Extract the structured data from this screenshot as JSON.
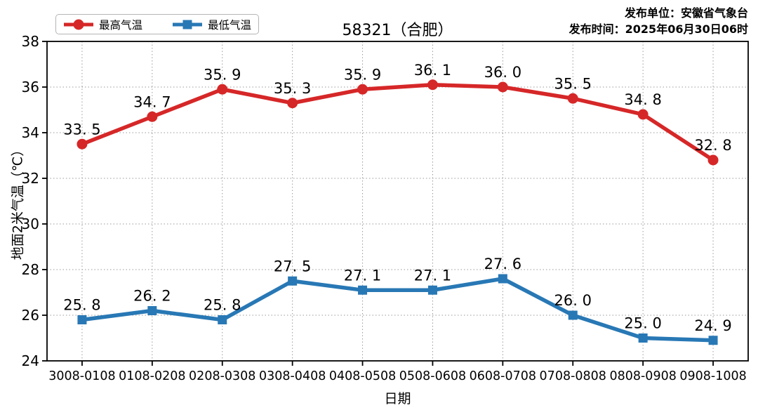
{
  "header": {
    "publisher_unit": "发布单位：安徽省气象台",
    "publish_time": "发布时间：2025年06月30日06时"
  },
  "chart_data": {
    "type": "line",
    "title": "58321（合肥）",
    "xlabel": "日期",
    "ylabel": "地面2米气温（℃）",
    "categories": [
      "3008-0108",
      "0108-0208",
      "0208-0308",
      "0308-0408",
      "0408-0508",
      "0508-0608",
      "0608-0708",
      "0708-0808",
      "0808-0908",
      "0908-1008"
    ],
    "series": [
      {
        "name": "最高气温",
        "color": "#d62728",
        "marker": "circle",
        "values": [
          33.5,
          34.7,
          35.9,
          35.3,
          35.9,
          36.1,
          36.0,
          35.5,
          34.8,
          32.8
        ]
      },
      {
        "name": "最低气温",
        "color": "#2878b5",
        "marker": "square",
        "values": [
          25.8,
          26.2,
          25.8,
          27.5,
          27.1,
          27.1,
          27.6,
          26.0,
          25.0,
          24.9
        ]
      }
    ],
    "ylim": [
      24,
      38
    ],
    "ytick_step": 2,
    "yticks": [
      24,
      26,
      28,
      30,
      32,
      34,
      36,
      38
    ],
    "grid": true,
    "grid_style": "dotted",
    "grid_color": "#9a9a9a",
    "legend_position": "top-left",
    "axis_color": "#000000",
    "label_color": "#000000"
  }
}
